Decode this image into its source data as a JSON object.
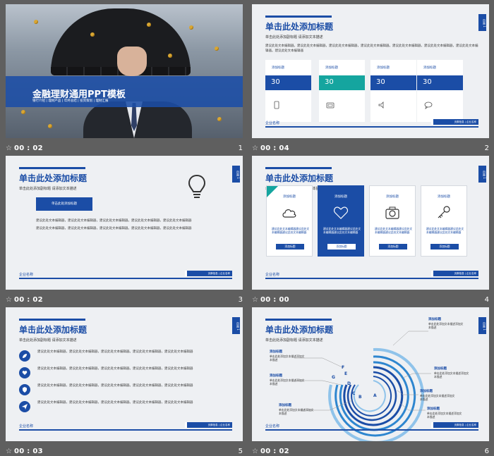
{
  "slide_title": "单击此处添加标题",
  "slide_subtitle": "单击此处添加副标题 请添加文本描述",
  "footer_company": "企业名称",
  "footer_chapter": "页脚信息 | 企业名称",
  "side_tag": "页面 1",
  "body_text": "建议此处文本编辑器。建议此处文本编辑器",
  "long_text": "建议此处文本编辑器。建议此处文本编辑器，建议此处文本编辑器，建议此处文本编辑器。建议此处文本编辑器，建议此处文本编辑器，建议此处文本编辑器。建议此处文本编辑器",
  "slides": [
    {
      "time": "00 : 02",
      "number": "1"
    },
    {
      "time": "00 : 04",
      "number": "2"
    },
    {
      "time": "00 : 02",
      "number": "3"
    },
    {
      "time": "00 : 00",
      "number": "4"
    },
    {
      "time": "00 : 03",
      "number": "5"
    },
    {
      "time": "00 : 02",
      "number": "6"
    }
  ],
  "slide1": {
    "title": "金融理财通用PPT模板",
    "subtitle": "银行介绍 | 理财产品 | 年终总结 | 投资策划 | 理财汇报"
  },
  "slide2": {
    "description": "建议此处文本编辑器。建议此处文本编辑器，建议此处文本编辑器，建议此处文本编辑器。建议此处文本编辑器，建议此处文本编辑器，建议此处文本编辑器。建议此处文本编辑器",
    "cards": [
      {
        "label": "添加标题",
        "value": "30",
        "icon": "phone-icon"
      },
      {
        "label": "添加标题",
        "value": "30",
        "icon": "card-icon"
      },
      {
        "label": "添加标题",
        "value": "30",
        "icon": "speaker-icon"
      },
      {
        "label": "添加标题",
        "value": "30",
        "icon": "chat-icon"
      }
    ]
  },
  "slide3": {
    "button": "单击此处添加标题",
    "paragraphs": [
      "建议此处文本编辑器，建议此处文本编辑器，建议此处文本编辑器。建议此处文本编辑器，建议此处文本编辑器",
      "建议此处文本编辑器，建议此处文本编辑器，建议此处文本编辑器。建议此处文本编辑器，建议此处文本编辑器"
    ]
  },
  "slide4": {
    "cards": [
      {
        "title": "添加标题",
        "desc": "建议此处文本编辑器建议此处文本编辑器建议此处文本编辑器",
        "button": "添加标题",
        "icon": "cloud-icon"
      },
      {
        "title": "添加标题",
        "desc": "建议此处文本编辑器建议此处文本编辑器建议此处文本编辑器",
        "button": "添加标题",
        "icon": "heart-icon"
      },
      {
        "title": "添加标题",
        "desc": "建议此处文本编辑器建议此处文本编辑器建议此处文本编辑器",
        "button": "添加标题",
        "icon": "camera-icon"
      },
      {
        "title": "添加标题",
        "desc": "建议此处文本编辑器建议此处文本编辑器建议此处文本编辑器",
        "button": "添加标题",
        "icon": "key-icon"
      }
    ]
  },
  "slide5": {
    "rows": [
      "建议此处文本编辑器，建议此处文本编辑器，建议此处文本编辑器。建议此处文本编辑器，建议此处文本编辑器",
      "建议此处文本编辑器，建议此处文本编辑器，建议此处文本编辑器。建议此处文本编辑器，建议此处文本编辑器",
      "建议此处文本编辑器，建议此处文本编辑器，建议此处文本编辑器。建议此处文本编辑器，建议此处文本编辑器",
      "建议此处文本编辑器，建议此处文本编辑器，建议此处文本编辑器。建议此处文本编辑器，建议此处文本编辑器"
    ]
  },
  "slide6": {
    "items": [
      {
        "title": "添加标题",
        "desc": "单击此处添加文本描述添加文本描述"
      },
      {
        "title": "添加标题",
        "desc": "单击此处添加文本描述添加文本描述"
      },
      {
        "title": "添加标题",
        "desc": "单击此处添加文本描述添加文本描述"
      },
      {
        "title": "添加标题",
        "desc": "单击此处添加文本描述添加文本描述"
      },
      {
        "title": "添加标题",
        "desc": "单击此处添加文本描述添加文本描述"
      },
      {
        "title": "添加标题",
        "desc": "单击此处添加文本描述添加文本描述"
      },
      {
        "title": "添加标题",
        "desc": "单击此处添加文本描述添加文本描述"
      }
    ],
    "letters": [
      "A",
      "B",
      "C",
      "D",
      "E",
      "F",
      "G"
    ]
  },
  "colors": {
    "primary": "#1b4da6",
    "teal": "#15a59f",
    "background": "#5f5f5f"
  }
}
